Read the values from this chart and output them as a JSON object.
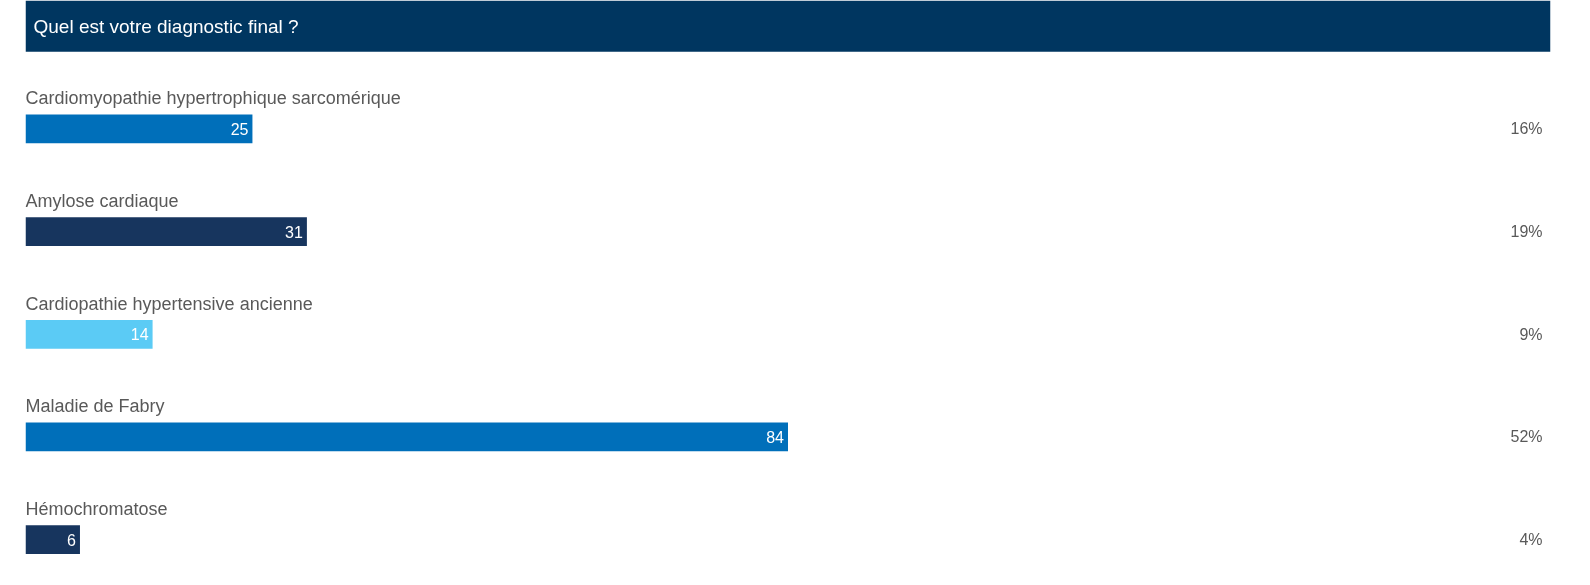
{
  "chart_data": {
    "type": "bar",
    "orientation": "horizontal",
    "title": "Quel est votre diagnostic final ?",
    "categories": [
      "Cardiomyopathie hypertrophique sarcomérique",
      "Amylose cardiaque",
      "Cardiopathie hypertensive ancienne",
      "Maladie de Fabry",
      "Hémochromatose"
    ],
    "values": [
      25,
      31,
      14,
      84,
      6
    ],
    "colors": [
      "#006fba",
      "#17355e",
      "#5bcbf5",
      "#006fba",
      "#17355e"
    ],
    "data_labels": true,
    "annotations": [
      "16%",
      "19%",
      "9%",
      "52%",
      "4%"
    ]
  }
}
